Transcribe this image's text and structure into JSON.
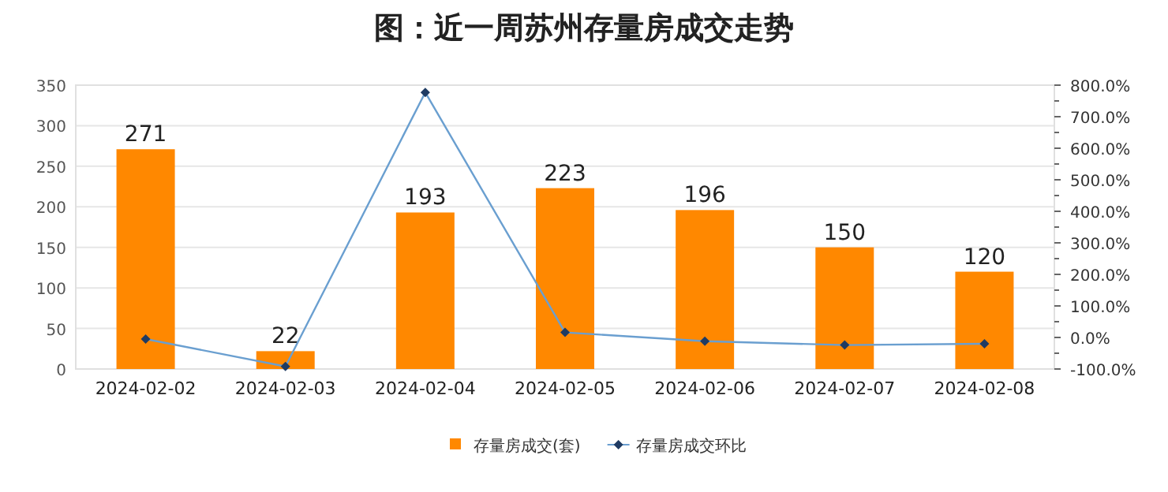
{
  "chart_data": {
    "type": "bar",
    "title": "图：近一周苏州存量房成交走势",
    "categories": [
      "2024-02-02",
      "2024-02-03",
      "2024-02-04",
      "2024-02-05",
      "2024-02-06",
      "2024-02-07",
      "2024-02-08"
    ],
    "series": [
      {
        "name": "存量房成交(套)",
        "color": "#ff8800",
        "values": [
          271,
          22,
          193,
          223,
          196,
          150,
          120
        ],
        "value_labels": [
          "271",
          "22",
          "193",
          "223",
          "196",
          "150",
          "120"
        ]
      },
      {
        "name": "存量房成交环比",
        "type": "line",
        "axis": "y2",
        "color": "#6a9fd0",
        "marker": "diamond",
        "values": [
          -5,
          -92,
          777,
          16,
          -12,
          -24,
          -20
        ]
      }
    ],
    "ylim": [
      0,
      350
    ],
    "yticks": [
      0,
      50,
      100,
      150,
      200,
      250,
      300,
      350
    ],
    "y2lim": [
      -100,
      800
    ],
    "y2ticks": [
      {
        "value": -100,
        "label": "-100.0%"
      },
      {
        "value": 0,
        "label": "0.0%"
      },
      {
        "value": 100,
        "label": "100.0%"
      },
      {
        "value": 200,
        "label": "200.0%"
      },
      {
        "value": 300,
        "label": "300.0%"
      },
      {
        "value": 400,
        "label": "400.0%"
      },
      {
        "value": 500,
        "label": "500.0%"
      },
      {
        "value": 600,
        "label": "600.0%"
      },
      {
        "value": 700,
        "label": "700.0%"
      },
      {
        "value": 800,
        "label": "800.0%"
      }
    ],
    "grid": "y",
    "legend": "bottom"
  }
}
